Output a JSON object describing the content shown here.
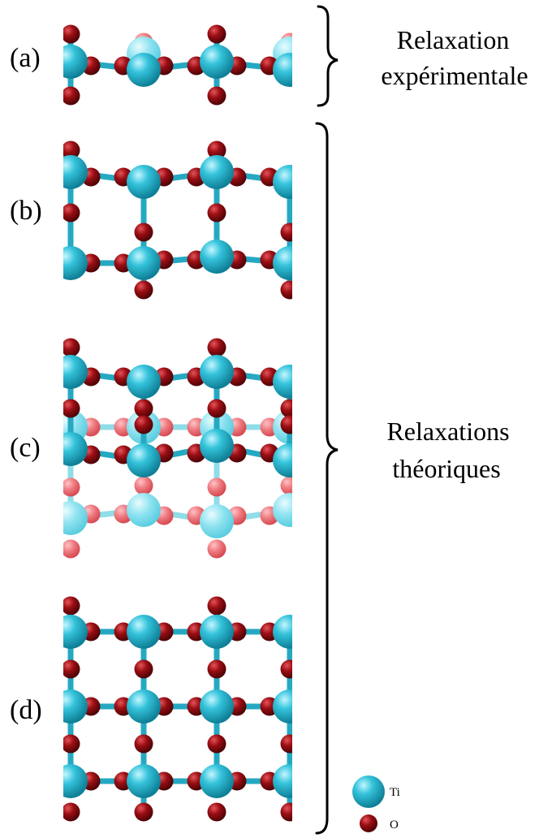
{
  "panels": [
    {
      "label": "(a)"
    },
    {
      "label": "(b)"
    },
    {
      "label": "(c)"
    },
    {
      "label": "(d)"
    }
  ],
  "groups": {
    "experimental": {
      "line1": "Relaxation",
      "line2": "expérimentale"
    },
    "theoretical": {
      "line1": "Relaxations",
      "line2": "théoriques"
    }
  },
  "legend": {
    "ti": {
      "label": "Ti"
    },
    "o": {
      "label": "O"
    }
  },
  "colors": {
    "ti": "#2bb9d2",
    "o": "#8a0c12",
    "ti_faded": "#9ae8f2",
    "o_faded": "#ec7f84",
    "bond": "#25a9c2"
  }
}
